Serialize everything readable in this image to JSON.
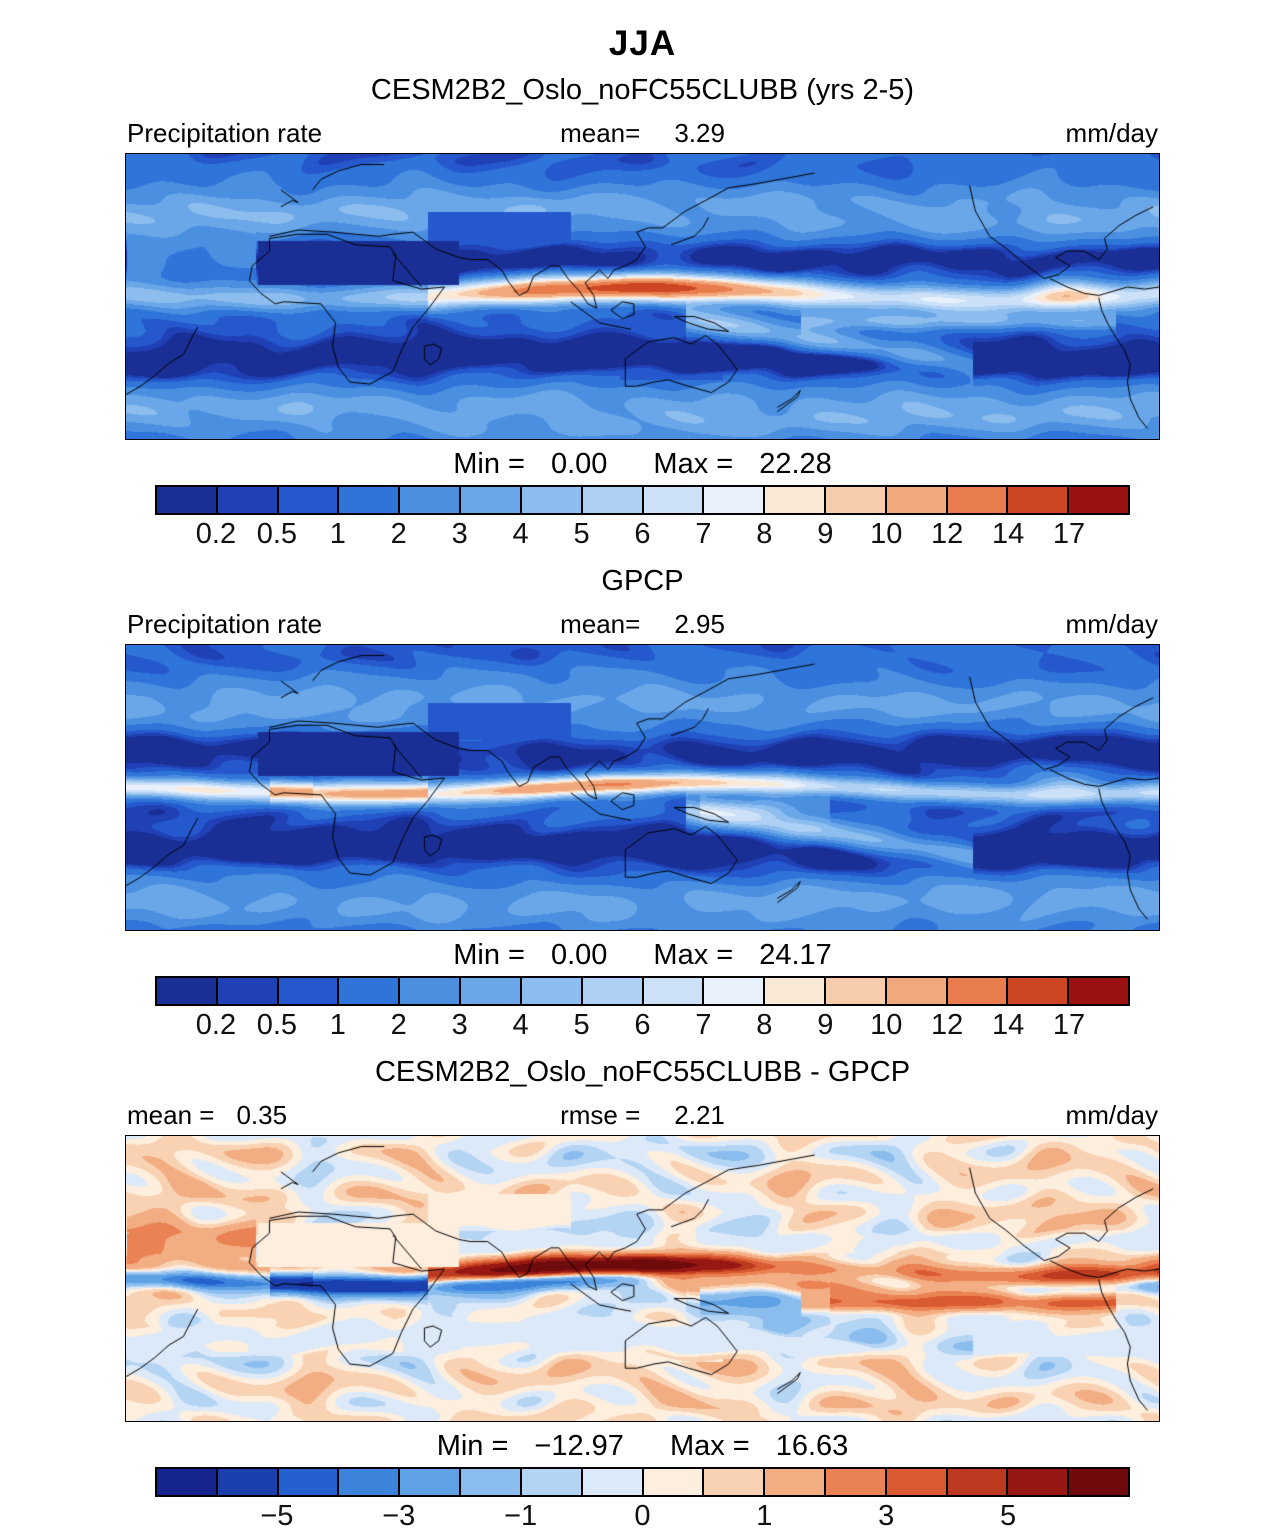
{
  "chart_data": {
    "type": "heatmap",
    "suptitle": "JJA",
    "colormaps": {
      "precip": [
        "#1a2f96",
        "#1f41b5",
        "#2458cc",
        "#2f74d8",
        "#4a8fe0",
        "#6aa7e8",
        "#8cbdee",
        "#aed0f4",
        "#cce0f8",
        "#e8f1fb",
        "#fbe9d7",
        "#f7cdab",
        "#f1a87c",
        "#e87c4c",
        "#ce4524",
        "#9c1210"
      ],
      "diff": [
        "#16248f",
        "#1c3fae",
        "#2560cf",
        "#3c84db",
        "#5ea1e5",
        "#8abdee",
        "#b4d4f4",
        "#dce9f9",
        "#fdeede",
        "#f9d2b4",
        "#f3ad82",
        "#ea8253",
        "#da5a31",
        "#bb3a20",
        "#971713",
        "#6f0a0d"
      ]
    },
    "levels": {
      "precip": [
        0.2,
        0.5,
        1,
        2,
        3,
        4,
        5,
        6,
        7,
        8,
        9,
        10,
        12,
        14,
        17
      ],
      "diff": [
        -7,
        -5,
        -4,
        -3,
        -2,
        -1,
        -0.5,
        0,
        0.5,
        1,
        2,
        3,
        4,
        5,
        7
      ]
    },
    "panels": [
      {
        "id": "model",
        "title": "CESM2B2_Oslo_noFC55CLUBB (yrs 2-5)",
        "info_left": {
          "label": "Precipitation rate",
          "value": ""
        },
        "info_center": {
          "label": "mean=",
          "value": "3.29"
        },
        "info_right": "mm/day",
        "min_label": "Min =",
        "min_value": "0.00",
        "max_label": "Max =",
        "max_value": "22.28",
        "colormap": "precip",
        "ticks": [
          "0.2",
          "0.5",
          "1",
          "2",
          "3",
          "4",
          "5",
          "6",
          "7",
          "8",
          "9",
          "10",
          "12",
          "14",
          "17"
        ],
        "tick_indices": [
          1,
          2,
          3,
          4,
          5,
          6,
          7,
          8,
          9,
          10,
          11,
          12,
          13,
          14,
          15
        ]
      },
      {
        "id": "obs",
        "title": "GPCP",
        "info_left": {
          "label": "Precipitation rate",
          "value": ""
        },
        "info_center": {
          "label": "mean=",
          "value": "2.95"
        },
        "info_right": "mm/day",
        "min_label": "Min =",
        "min_value": "0.00",
        "max_label": "Max =",
        "max_value": "24.17",
        "colormap": "precip",
        "ticks": [
          "0.2",
          "0.5",
          "1",
          "2",
          "3",
          "4",
          "5",
          "6",
          "7",
          "8",
          "9",
          "10",
          "12",
          "14",
          "17"
        ],
        "tick_indices": [
          1,
          2,
          3,
          4,
          5,
          6,
          7,
          8,
          9,
          10,
          11,
          12,
          13,
          14,
          15
        ]
      },
      {
        "id": "diff",
        "title": "CESM2B2_Oslo_noFC55CLUBB - GPCP",
        "info_left": {
          "label": "mean  =",
          "value": "0.35"
        },
        "info_center": {
          "label": "rmse  =",
          "value": "2.21"
        },
        "info_right": "mm/day",
        "min_label": "Min =",
        "min_value": "−12.97",
        "max_label": "Max =",
        "max_value": "16.63",
        "colormap": "diff",
        "ticks": [
          "−5",
          "−3",
          "−1",
          "0",
          "1",
          "3",
          "5"
        ],
        "tick_indices": [
          2,
          4,
          6,
          8,
          10,
          12,
          14
        ]
      }
    ]
  }
}
